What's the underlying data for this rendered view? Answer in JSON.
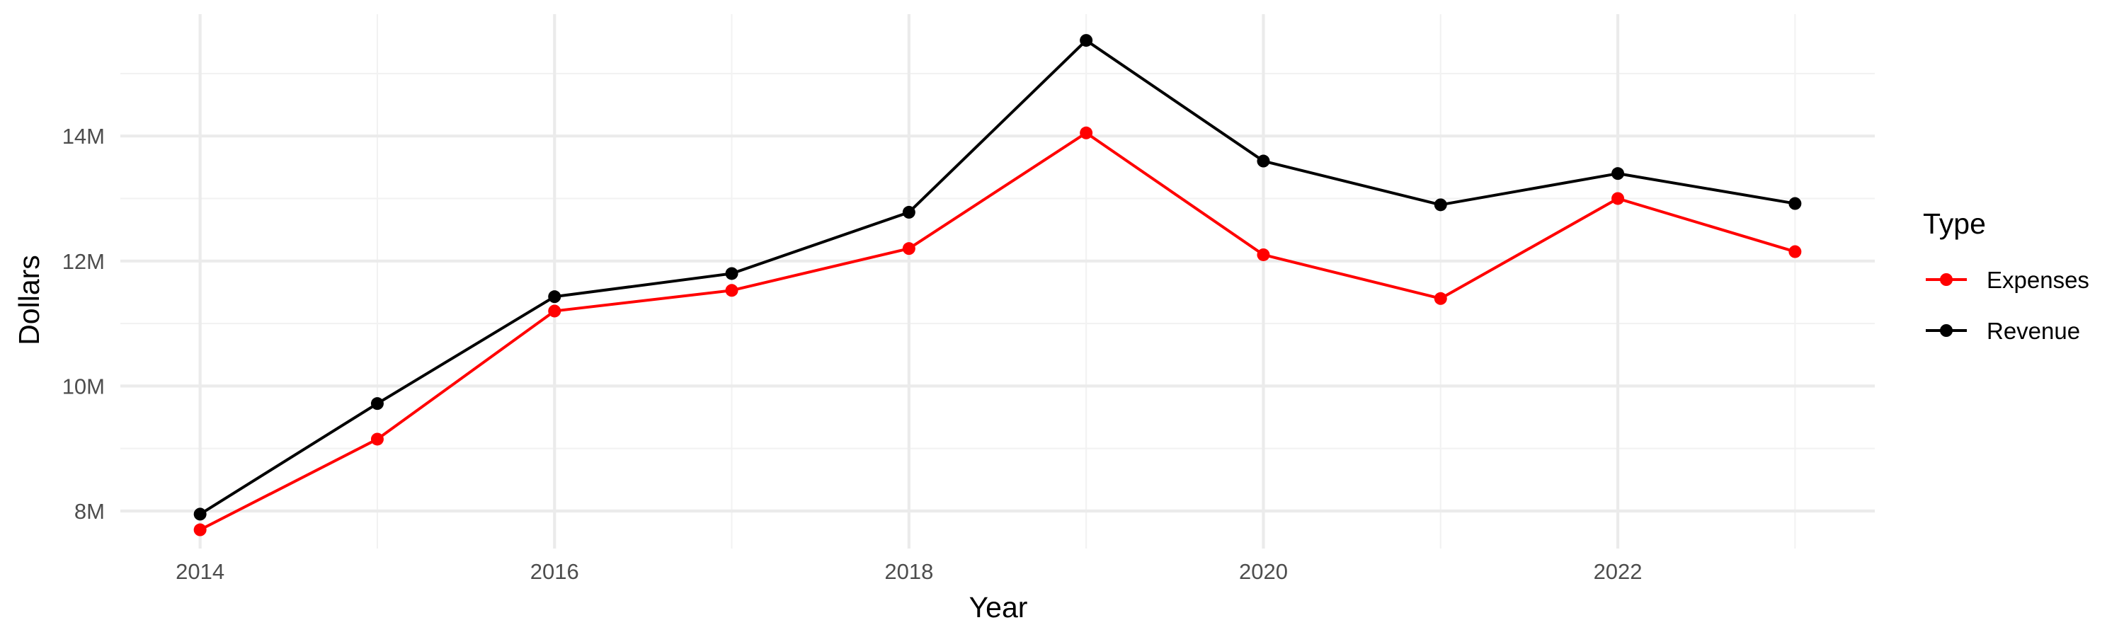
{
  "chart_data": {
    "type": "line",
    "xlabel": "Year",
    "ylabel": "Dollars",
    "x": [
      2014,
      2015,
      2016,
      2017,
      2018,
      2019,
      2020,
      2021,
      2022,
      2023
    ],
    "x_ticks": [
      2014,
      2016,
      2018,
      2020,
      2022
    ],
    "x_tick_labels": [
      "2014",
      "2016",
      "2018",
      "2020",
      "2022"
    ],
    "y_ticks": [
      8000000,
      10000000,
      12000000,
      14000000
    ],
    "y_tick_labels": [
      "8M",
      "10M",
      "12M",
      "14M"
    ],
    "xlim": [
      2013.55,
      2023.45
    ],
    "ylim": [
      7400000,
      15950000
    ],
    "grid": true,
    "legend": {
      "title": "Type",
      "position": "right"
    },
    "series": [
      {
        "name": "Expenses",
        "color": "#ff0000",
        "values": [
          7700000,
          9150000,
          11200000,
          11530000,
          12200000,
          14050000,
          12100000,
          11400000,
          13000000,
          12150000
        ]
      },
      {
        "name": "Revenue",
        "color": "#000000",
        "values": [
          7950000,
          9720000,
          11430000,
          11800000,
          12780000,
          15530000,
          13600000,
          12900000,
          13400000,
          12920000
        ]
      }
    ]
  }
}
